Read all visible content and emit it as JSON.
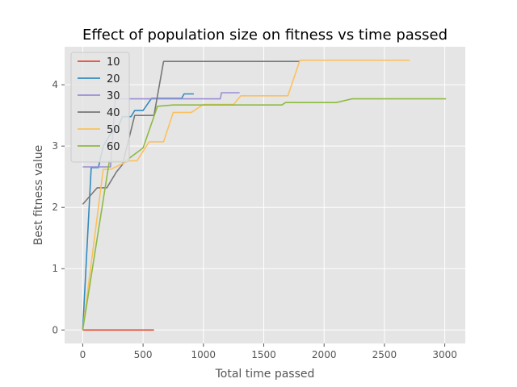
{
  "chart_data": {
    "type": "line",
    "title": "Effect of population size on fitness vs time passed",
    "xlabel": "Total time passed",
    "ylabel": "Best fitness value",
    "xlim": [
      -150,
      3170
    ],
    "ylim": [
      -0.22,
      4.62
    ],
    "xticks": [
      0,
      500,
      1000,
      1500,
      2000,
      2500,
      3000
    ],
    "yticks": [
      0,
      1,
      2,
      3,
      4
    ],
    "grid": true,
    "legend_position": "top-left",
    "series": [
      {
        "name": "10",
        "color": "#E24A33",
        "points": [
          [
            0,
            0
          ],
          [
            590,
            0
          ]
        ]
      },
      {
        "name": "20",
        "color": "#348ABD",
        "points": [
          [
            0,
            0
          ],
          [
            70,
            2.65
          ],
          [
            130,
            2.65
          ],
          [
            170,
            3.0
          ],
          [
            230,
            3.2
          ],
          [
            290,
            3.3
          ],
          [
            330,
            3.48
          ],
          [
            400,
            3.48
          ],
          [
            430,
            3.58
          ],
          [
            500,
            3.58
          ],
          [
            570,
            3.78
          ],
          [
            820,
            3.78
          ],
          [
            840,
            3.85
          ],
          [
            920,
            3.85
          ]
        ]
      },
      {
        "name": "30",
        "color": "#988ED5",
        "points": [
          [
            0,
            2.66
          ],
          [
            230,
            2.66
          ],
          [
            270,
            3.77
          ],
          [
            420,
            3.77
          ],
          [
            500,
            3.77
          ],
          [
            700,
            3.77
          ],
          [
            1140,
            3.77
          ],
          [
            1150,
            3.87
          ],
          [
            1300,
            3.87
          ]
        ]
      },
      {
        "name": "40",
        "color": "#777777",
        "points": [
          [
            0,
            2.05
          ],
          [
            120,
            2.32
          ],
          [
            200,
            2.32
          ],
          [
            280,
            2.58
          ],
          [
            330,
            2.7
          ],
          [
            430,
            3.5
          ],
          [
            590,
            3.5
          ],
          [
            670,
            4.38
          ],
          [
            1800,
            4.38
          ]
        ]
      },
      {
        "name": "50",
        "color": "#FBC15E",
        "points": [
          [
            0,
            0
          ],
          [
            170,
            2.62
          ],
          [
            230,
            2.62
          ],
          [
            380,
            2.76
          ],
          [
            450,
            2.76
          ],
          [
            550,
            3.07
          ],
          [
            670,
            3.07
          ],
          [
            750,
            3.55
          ],
          [
            900,
            3.55
          ],
          [
            1000,
            3.68
          ],
          [
            1250,
            3.68
          ],
          [
            1310,
            3.82
          ],
          [
            1700,
            3.82
          ],
          [
            1800,
            4.4
          ],
          [
            2710,
            4.4
          ]
        ]
      },
      {
        "name": "60",
        "color": "#8EBA42",
        "points": [
          [
            0,
            0
          ],
          [
            220,
            2.75
          ],
          [
            350,
            2.75
          ],
          [
            500,
            2.97
          ],
          [
            620,
            3.65
          ],
          [
            750,
            3.67
          ],
          [
            1000,
            3.67
          ],
          [
            1650,
            3.67
          ],
          [
            1680,
            3.71
          ],
          [
            2100,
            3.71
          ],
          [
            2230,
            3.77
          ],
          [
            3010,
            3.77
          ]
        ]
      }
    ]
  }
}
